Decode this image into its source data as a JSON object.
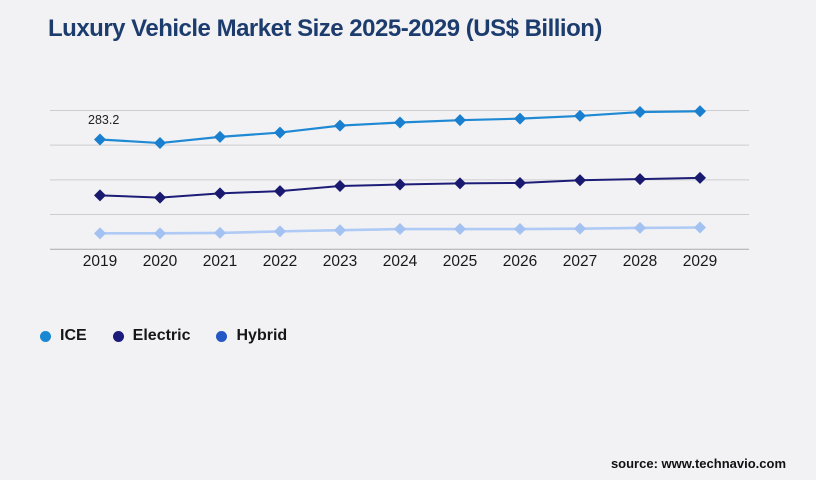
{
  "title": "Luxury Vehicle Market Size 2025-2029 (US$ Billion)",
  "source": "source: www.technavio.com",
  "colors": {
    "background": "#f2f2f4",
    "title": "#1d3c6e",
    "gridline": "#cdcdd1",
    "axis_line": "#aaaaae",
    "label_text": "#191919"
  },
  "legend": {
    "items": [
      {
        "label": "ICE",
        "color": "#1a87d2"
      },
      {
        "label": "Electric",
        "color": "#1b1b7e"
      },
      {
        "label": "Hybrid",
        "color": "#2457c5"
      }
    ]
  },
  "chart_data": {
    "type": "line",
    "title": "Luxury Vehicle Market Size 2025-2029 (US$ Billion)",
    "categories": [
      "2019",
      "2020",
      "2021",
      "2022",
      "2023",
      "2024",
      "2025",
      "2026",
      "2027",
      "2028",
      "2029"
    ],
    "series": [
      {
        "name": "ICE",
        "line_color": "#2089d4",
        "marker_color": "#1a7fce",
        "line_width": 2.2,
        "values": [
          283.2,
          274,
          290,
          301,
          319,
          327,
          333,
          337,
          344,
          354,
          356
        ]
      },
      {
        "name": "Electric",
        "line_color": "#1d1d78",
        "marker_color": "#191970",
        "line_width": 2,
        "values": [
          139,
          133,
          144,
          150,
          163,
          167,
          170,
          171,
          178,
          181,
          184
        ]
      },
      {
        "name": "Hybrid",
        "line_color": "#afcaf5",
        "marker_color": "#a3c2f2",
        "line_width": 2.6,
        "values": [
          41,
          41,
          42,
          46,
          49,
          52,
          52,
          52,
          53,
          55,
          56
        ]
      }
    ],
    "ylim": [
      0,
      358
    ],
    "xlabel": "",
    "ylabel": "",
    "y_axis_labels": "none",
    "grid": "horizontal",
    "legend_position": "bottom-left",
    "annotation": {
      "text": "283.2",
      "series": "ICE",
      "category": "2019"
    }
  }
}
